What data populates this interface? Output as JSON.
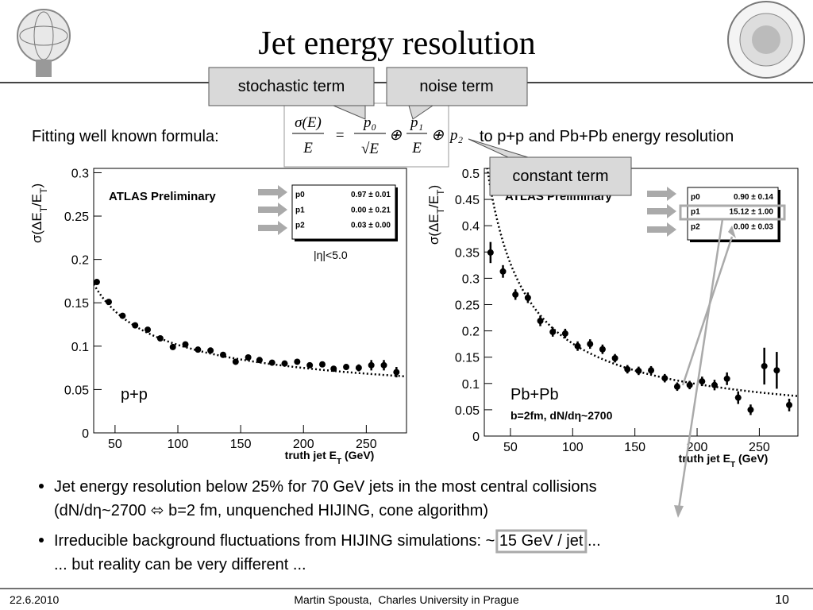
{
  "title": "Jet energy resolution",
  "callouts": [
    "stochastic term",
    "noise term",
    "constant term"
  ],
  "formula_intro": "Fitting well known formula:",
  "formula": [
    "σ(E)",
    "E",
    "=",
    "p₀",
    "√E",
    "⊕",
    "p₁",
    "E",
    "⊕",
    "p₂"
  ],
  "formula_outro": "to p+p and Pb+Pb energy resolution",
  "chart_data": [
    {
      "type": "scatter",
      "x_label": [
        "truth jet E",
        "T",
        " (GeV)"
      ],
      "y_label": [
        "σ(ΔE",
        "T",
        "/E",
        "T",
        ")"
      ],
      "xlim": [
        33,
        282
      ],
      "ylim": [
        0,
        0.305
      ],
      "xticks": [
        50,
        100,
        150,
        200,
        250
      ],
      "yticks": [
        0,
        0.05,
        0.1,
        0.15,
        0.2,
        0.25,
        0.3
      ],
      "color": "#000000",
      "x": [
        35.5,
        45,
        56,
        66,
        76,
        86,
        96,
        106,
        116,
        126,
        136,
        146,
        156,
        165,
        175,
        185,
        195,
        205,
        215,
        224,
        234,
        244,
        254,
        264,
        274
      ],
      "values": [
        0.174,
        0.151,
        0.135,
        0.124,
        0.119,
        0.109,
        0.099,
        0.102,
        0.096,
        0.095,
        0.09,
        0.082,
        0.087,
        0.084,
        0.081,
        0.08,
        0.082,
        0.078,
        0.079,
        0.074,
        0.076,
        0.075,
        0.078,
        0.078,
        0.07
      ],
      "errors": [
        0.003,
        0.003,
        0.003,
        0.003,
        0.003,
        0.003,
        0.003,
        0.003,
        0.003,
        0.003,
        0.003,
        0.003,
        0.003,
        0.003,
        0.003,
        0.003,
        0.003,
        0.003,
        0.003,
        0.003,
        0.003,
        0.004,
        0.006,
        0.006,
        0.006
      ],
      "fit": [
        {
          "name": "p0",
          "label": "0.97 ± 0.01",
          "value": 0.97
        },
        {
          "name": "p1",
          "label": "0.00 ± 0.21",
          "value": 0
        },
        {
          "name": "p2",
          "label": "0.03 ± 0.00",
          "value": 0.03
        }
      ],
      "annotations": [
        "ATLAS Preliminary",
        "|η|<5.0",
        "p+p"
      ]
    },
    {
      "type": "scatter",
      "x_label": [
        "truth jet E",
        "T",
        " (GeV)"
      ],
      "y_label": [
        "σ(ΔE",
        "T",
        "/E",
        "T",
        ")"
      ],
      "xlim": [
        29,
        281
      ],
      "ylim": [
        0,
        0.509
      ],
      "xticks": [
        50,
        100,
        150,
        200,
        250
      ],
      "yticks": [
        0,
        0.05,
        0.1,
        0.15,
        0.2,
        0.25,
        0.3,
        0.35,
        0.4,
        0.45,
        0.5
      ],
      "color": "#000000",
      "x": [
        34,
        44,
        54,
        64,
        74,
        84,
        94,
        104,
        114,
        124,
        134,
        144,
        153,
        163,
        174,
        184,
        194,
        204,
        214,
        224,
        233,
        243,
        254,
        264,
        274
      ],
      "values": [
        0.349,
        0.313,
        0.269,
        0.263,
        0.219,
        0.198,
        0.195,
        0.171,
        0.175,
        0.165,
        0.148,
        0.127,
        0.124,
        0.125,
        0.11,
        0.094,
        0.097,
        0.104,
        0.097,
        0.109,
        0.073,
        0.05,
        0.133,
        0.125,
        0.059
      ],
      "errors": [
        0.02,
        0.012,
        0.01,
        0.01,
        0.01,
        0.009,
        0.009,
        0.009,
        0.009,
        0.009,
        0.008,
        0.008,
        0.008,
        0.008,
        0.008,
        0.008,
        0.008,
        0.009,
        0.01,
        0.012,
        0.012,
        0.01,
        0.035,
        0.035,
        0.012
      ],
      "fit": [
        {
          "name": "p0",
          "label": "0.90 ± 0.14",
          "value": 0.9
        },
        {
          "name": "p1",
          "label": "15.12 ± 1.00",
          "value": 15.12
        },
        {
          "name": "p2",
          "label": "0.00 ± 0.03",
          "value": 0
        }
      ],
      "annotations": [
        "ATLAS Preliminary",
        "Pb+Pb",
        "b=2fm, dN/dη~2700"
      ]
    }
  ],
  "bullets": [
    [
      "Jet energy resolution below 25% for 70 GeV jets in the most central collisions",
      "(dN/dη~2700 ⬄ b=2 fm, unquenched HIJING, cone algorithm)"
    ],
    [
      "Irreducible background fluctuations from HIJING simulations: ~ ",
      "15 GeV / jet",
      " ...",
      "... but reality can be very different ..."
    ]
  ],
  "footer": {
    "date": "22.6.2010",
    "author": "Martin Spousta,  Charles University in Prague",
    "page": "10"
  }
}
